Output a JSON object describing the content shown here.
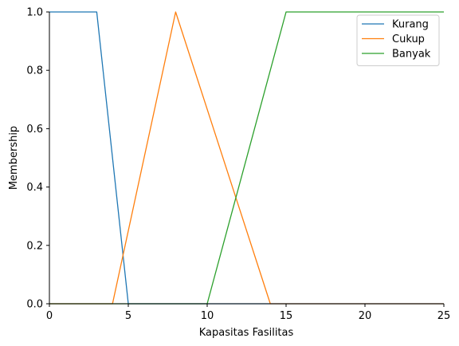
{
  "chart_data": {
    "type": "line",
    "title": "",
    "xlabel": "Kapasitas Fasilitas",
    "ylabel": "Membership",
    "xlim": [
      0,
      25
    ],
    "ylim": [
      0,
      1.0
    ],
    "xticks": [
      "0",
      "5",
      "10",
      "15",
      "20",
      "25"
    ],
    "yticks": [
      "0.0",
      "0.2",
      "0.4",
      "0.6",
      "0.8",
      "1.0"
    ],
    "grid": false,
    "legend_position": "top-right",
    "series": [
      {
        "name": "Kurang",
        "color": "#1f77b4",
        "x": [
          0,
          3,
          5,
          25
        ],
        "y": [
          1,
          1,
          0,
          0
        ]
      },
      {
        "name": "Cukup",
        "color": "#ff7f0e",
        "x": [
          0,
          4,
          8,
          14,
          25
        ],
        "y": [
          0,
          0,
          1,
          0,
          0
        ]
      },
      {
        "name": "Banyak",
        "color": "#2ca02c",
        "x": [
          0,
          10,
          15,
          25
        ],
        "y": [
          0,
          0,
          1,
          1
        ]
      }
    ]
  }
}
